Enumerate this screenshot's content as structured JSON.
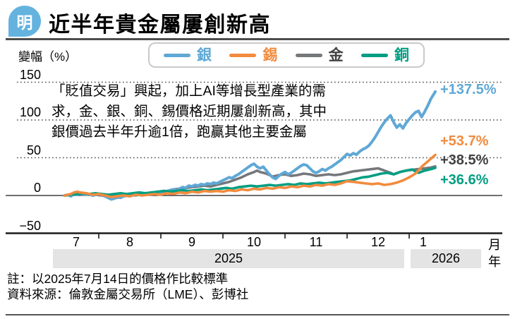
{
  "header": {
    "logo_text": "明",
    "title": "近半年貴金屬屢創新高"
  },
  "chart": {
    "y_axis_title": "變幅（%）",
    "x_unit_month": "月",
    "x_unit_year": "年",
    "annotation_lines": [
      "「貶值交易」興起，加上AI等增長型產業的需",
      "求，金、銀、銅、錫價格近期屢創新高，其中",
      "銀價過去半年升逾1倍，跑贏其他主要金屬"
    ]
  },
  "chart_data": {
    "type": "line",
    "title": "近半年貴金屬屢創新高",
    "ylabel": "變幅（%）",
    "ylim": [
      -50,
      150
    ],
    "y_ticks": [
      150,
      100,
      50,
      0,
      -50
    ],
    "grid": "dotted horizontal gridlines at 50/100/150, solid line at 0, solid axis at -50",
    "legend_position": "top",
    "x_months": [
      "7",
      "8",
      "9",
      "10",
      "11",
      "12",
      "1"
    ],
    "year_bands": [
      {
        "label": "2025"
      },
      {
        "label": "2026"
      }
    ],
    "series": [
      {
        "name": "銀",
        "color": "#5fa8d6",
        "end_label": "+137.5%",
        "points": [
          [
            7.45,
            0
          ],
          [
            7.5,
            1
          ],
          [
            7.55,
            -1
          ],
          [
            7.6,
            2
          ],
          [
            7.65,
            1
          ],
          [
            7.7,
            3
          ],
          [
            7.75,
            2
          ],
          [
            7.8,
            1
          ],
          [
            7.85,
            2
          ],
          [
            7.9,
            0
          ],
          [
            7.95,
            1
          ],
          [
            8.0,
            2
          ],
          [
            8.05,
            1
          ],
          [
            8.1,
            -1
          ],
          [
            8.15,
            -3
          ],
          [
            8.2,
            -5
          ],
          [
            8.25,
            -4
          ],
          [
            8.3,
            -2
          ],
          [
            8.35,
            -3
          ],
          [
            8.4,
            -1
          ],
          [
            8.45,
            0
          ],
          [
            8.5,
            -1
          ],
          [
            8.55,
            1
          ],
          [
            8.6,
            0
          ],
          [
            8.65,
            2
          ],
          [
            8.7,
            1
          ],
          [
            8.75,
            3
          ],
          [
            8.8,
            2
          ],
          [
            8.85,
            4
          ],
          [
            8.9,
            3
          ],
          [
            8.95,
            5
          ],
          [
            9.0,
            4
          ],
          [
            9.05,
            6
          ],
          [
            9.1,
            5
          ],
          [
            9.15,
            7
          ],
          [
            9.2,
            8
          ],
          [
            9.25,
            7
          ],
          [
            9.3,
            9
          ],
          [
            9.35,
            11
          ],
          [
            9.4,
            10
          ],
          [
            9.45,
            13
          ],
          [
            9.5,
            12
          ],
          [
            9.55,
            14
          ],
          [
            9.6,
            13
          ],
          [
            9.65,
            15
          ],
          [
            9.7,
            14
          ],
          [
            9.75,
            16
          ],
          [
            9.8,
            15
          ],
          [
            9.85,
            17
          ],
          [
            9.9,
            16
          ],
          [
            9.95,
            18
          ],
          [
            10.0,
            20
          ],
          [
            10.05,
            22
          ],
          [
            10.1,
            24
          ],
          [
            10.15,
            23
          ],
          [
            10.2,
            26
          ],
          [
            10.25,
            28
          ],
          [
            10.3,
            31
          ],
          [
            10.35,
            34
          ],
          [
            10.4,
            37
          ],
          [
            10.45,
            40
          ],
          [
            10.5,
            42
          ],
          [
            10.55,
            38
          ],
          [
            10.6,
            36
          ],
          [
            10.65,
            38
          ],
          [
            10.7,
            33
          ],
          [
            10.75,
            28
          ],
          [
            10.8,
            24
          ],
          [
            10.85,
            22
          ],
          [
            10.9,
            26
          ],
          [
            10.95,
            29
          ],
          [
            11.0,
            31
          ],
          [
            11.05,
            28
          ],
          [
            11.1,
            30
          ],
          [
            11.15,
            33
          ],
          [
            11.2,
            36
          ],
          [
            11.25,
            39
          ],
          [
            11.3,
            41
          ],
          [
            11.35,
            40
          ],
          [
            11.4,
            36
          ],
          [
            11.45,
            32
          ],
          [
            11.5,
            30
          ],
          [
            11.55,
            32
          ],
          [
            11.6,
            35
          ],
          [
            11.65,
            33
          ],
          [
            11.7,
            36
          ],
          [
            11.75,
            38
          ],
          [
            11.8,
            41
          ],
          [
            11.85,
            44
          ],
          [
            11.9,
            47
          ],
          [
            11.95,
            51
          ],
          [
            12.0,
            55
          ],
          [
            12.05,
            53
          ],
          [
            12.1,
            56
          ],
          [
            12.15,
            54
          ],
          [
            12.2,
            58
          ],
          [
            12.25,
            61
          ],
          [
            12.3,
            63
          ],
          [
            12.35,
            66
          ],
          [
            12.4,
            71
          ],
          [
            12.45,
            77
          ],
          [
            12.5,
            84
          ],
          [
            12.55,
            91
          ],
          [
            12.6,
            97
          ],
          [
            12.65,
            102
          ],
          [
            12.7,
            106
          ],
          [
            12.75,
            97
          ],
          [
            12.8,
            90
          ],
          [
            12.85,
            94
          ],
          [
            12.9,
            89
          ],
          [
            12.95,
            96
          ],
          [
            13.0,
            101
          ],
          [
            13.05,
            106
          ],
          [
            13.1,
            110
          ],
          [
            13.15,
            112
          ],
          [
            13.2,
            104
          ],
          [
            13.25,
            111
          ],
          [
            13.3,
            119
          ],
          [
            13.35,
            128
          ],
          [
            13.42,
            137.5
          ]
        ]
      },
      {
        "name": "錫",
        "color": "#f28b3e",
        "end_label": "+53.7%",
        "points": [
          [
            7.45,
            0
          ],
          [
            7.5,
            1
          ],
          [
            7.55,
            2
          ],
          [
            7.6,
            4
          ],
          [
            7.65,
            5
          ],
          [
            7.7,
            4
          ],
          [
            7.8,
            3
          ],
          [
            7.9,
            1
          ],
          [
            8.0,
            2
          ],
          [
            8.1,
            0
          ],
          [
            8.2,
            -2
          ],
          [
            8.3,
            -1
          ],
          [
            8.4,
            0
          ],
          [
            8.5,
            -1
          ],
          [
            8.6,
            1
          ],
          [
            8.7,
            0
          ],
          [
            8.8,
            1
          ],
          [
            8.9,
            2
          ],
          [
            9.0,
            1
          ],
          [
            9.1,
            3
          ],
          [
            9.2,
            2
          ],
          [
            9.3,
            4
          ],
          [
            9.4,
            3
          ],
          [
            9.5,
            5
          ],
          [
            9.6,
            4
          ],
          [
            9.7,
            6
          ],
          [
            9.8,
            5
          ],
          [
            9.9,
            6
          ],
          [
            10.0,
            5
          ],
          [
            10.1,
            7
          ],
          [
            10.2,
            6
          ],
          [
            10.3,
            8
          ],
          [
            10.4,
            7
          ],
          [
            10.5,
            9
          ],
          [
            10.6,
            8
          ],
          [
            10.7,
            10
          ],
          [
            10.8,
            9
          ],
          [
            10.9,
            11
          ],
          [
            11.0,
            10
          ],
          [
            11.1,
            12
          ],
          [
            11.2,
            11
          ],
          [
            11.3,
            13
          ],
          [
            11.4,
            12
          ],
          [
            11.5,
            14
          ],
          [
            11.6,
            13
          ],
          [
            11.7,
            15
          ],
          [
            11.8,
            14
          ],
          [
            11.9,
            16
          ],
          [
            12.0,
            19
          ],
          [
            12.1,
            18
          ],
          [
            12.2,
            17
          ],
          [
            12.3,
            16
          ],
          [
            12.4,
            15
          ],
          [
            12.5,
            16
          ],
          [
            12.6,
            14
          ],
          [
            12.7,
            15
          ],
          [
            12.8,
            17
          ],
          [
            12.9,
            20
          ],
          [
            13.0,
            24
          ],
          [
            13.1,
            29
          ],
          [
            13.15,
            33
          ],
          [
            13.2,
            38
          ],
          [
            13.3,
            45
          ],
          [
            13.42,
            53.7
          ]
        ]
      },
      {
        "name": "金",
        "color": "#75787b",
        "label_color": "#414042",
        "end_label": "+38.5%",
        "points": [
          [
            7.45,
            0
          ],
          [
            7.55,
            1
          ],
          [
            7.65,
            2
          ],
          [
            7.75,
            1
          ],
          [
            7.85,
            2
          ],
          [
            7.95,
            1
          ],
          [
            8.05,
            0
          ],
          [
            8.15,
            -2
          ],
          [
            8.2,
            -4
          ],
          [
            8.3,
            -3
          ],
          [
            8.4,
            -1
          ],
          [
            8.5,
            0
          ],
          [
            8.6,
            1
          ],
          [
            8.7,
            2
          ],
          [
            8.8,
            3
          ],
          [
            8.9,
            4
          ],
          [
            9.0,
            5
          ],
          [
            9.1,
            6
          ],
          [
            9.2,
            8
          ],
          [
            9.3,
            9
          ],
          [
            9.4,
            10
          ],
          [
            9.5,
            11
          ],
          [
            9.6,
            12
          ],
          [
            9.7,
            13
          ],
          [
            9.8,
            12
          ],
          [
            9.9,
            14
          ],
          [
            10.0,
            16
          ],
          [
            10.1,
            18
          ],
          [
            10.2,
            21
          ],
          [
            10.3,
            24
          ],
          [
            10.4,
            28
          ],
          [
            10.5,
            31
          ],
          [
            10.55,
            33
          ],
          [
            10.6,
            31
          ],
          [
            10.7,
            29
          ],
          [
            10.8,
            25
          ],
          [
            10.9,
            27
          ],
          [
            11.0,
            28
          ],
          [
            11.1,
            26
          ],
          [
            11.2,
            27
          ],
          [
            11.3,
            29
          ],
          [
            11.4,
            28
          ],
          [
            11.5,
            26
          ],
          [
            11.6,
            27
          ],
          [
            11.7,
            28
          ],
          [
            11.8,
            27
          ],
          [
            11.9,
            28
          ],
          [
            12.0,
            30
          ],
          [
            12.1,
            32
          ],
          [
            12.2,
            33
          ],
          [
            12.3,
            34
          ],
          [
            12.4,
            35
          ],
          [
            12.5,
            36
          ],
          [
            12.6,
            33
          ],
          [
            12.7,
            30
          ],
          [
            12.75,
            28
          ],
          [
            12.85,
            31
          ],
          [
            12.95,
            33
          ],
          [
            13.05,
            34
          ],
          [
            13.15,
            35
          ],
          [
            13.25,
            36
          ],
          [
            13.35,
            37
          ],
          [
            13.42,
            38.5
          ]
        ]
      },
      {
        "name": "銅",
        "color": "#009e82",
        "end_label": "+36.6%",
        "points": [
          [
            7.45,
            0
          ],
          [
            7.55,
            1
          ],
          [
            7.65,
            2
          ],
          [
            7.75,
            3
          ],
          [
            7.85,
            2
          ],
          [
            7.95,
            3
          ],
          [
            8.05,
            2
          ],
          [
            8.15,
            1
          ],
          [
            8.25,
            2
          ],
          [
            8.35,
            3
          ],
          [
            8.45,
            2
          ],
          [
            8.55,
            3
          ],
          [
            8.65,
            4
          ],
          [
            8.75,
            3
          ],
          [
            8.85,
            4
          ],
          [
            8.95,
            5
          ],
          [
            9.05,
            6
          ],
          [
            9.15,
            5
          ],
          [
            9.25,
            6
          ],
          [
            9.35,
            7
          ],
          [
            9.45,
            6
          ],
          [
            9.55,
            7
          ],
          [
            9.65,
            8
          ],
          [
            9.75,
            7
          ],
          [
            9.85,
            8
          ],
          [
            9.95,
            9
          ],
          [
            10.05,
            10
          ],
          [
            10.15,
            9
          ],
          [
            10.25,
            11
          ],
          [
            10.35,
            12
          ],
          [
            10.45,
            13
          ],
          [
            10.55,
            12
          ],
          [
            10.65,
            13
          ],
          [
            10.75,
            14
          ],
          [
            10.85,
            13
          ],
          [
            10.95,
            14
          ],
          [
            11.05,
            15
          ],
          [
            11.15,
            14
          ],
          [
            11.25,
            16
          ],
          [
            11.35,
            15
          ],
          [
            11.45,
            16
          ],
          [
            11.55,
            17
          ],
          [
            11.65,
            16
          ],
          [
            11.75,
            17
          ],
          [
            11.85,
            18
          ],
          [
            11.95,
            19
          ],
          [
            12.05,
            20
          ],
          [
            12.15,
            22
          ],
          [
            12.25,
            24
          ],
          [
            12.35,
            25
          ],
          [
            12.45,
            27
          ],
          [
            12.55,
            29
          ],
          [
            12.65,
            30
          ],
          [
            12.75,
            28
          ],
          [
            12.85,
            31
          ],
          [
            12.95,
            33
          ],
          [
            13.05,
            34.5
          ],
          [
            13.1,
            32
          ],
          [
            13.15,
            30
          ],
          [
            13.25,
            33
          ],
          [
            13.35,
            35
          ],
          [
            13.42,
            36.6
          ]
        ]
      }
    ]
  },
  "notes": {
    "note": "註：以2025年7月14日的價格作比較標準",
    "source": "資料來源：倫敦金屬交易所（LME）、彭博社"
  }
}
